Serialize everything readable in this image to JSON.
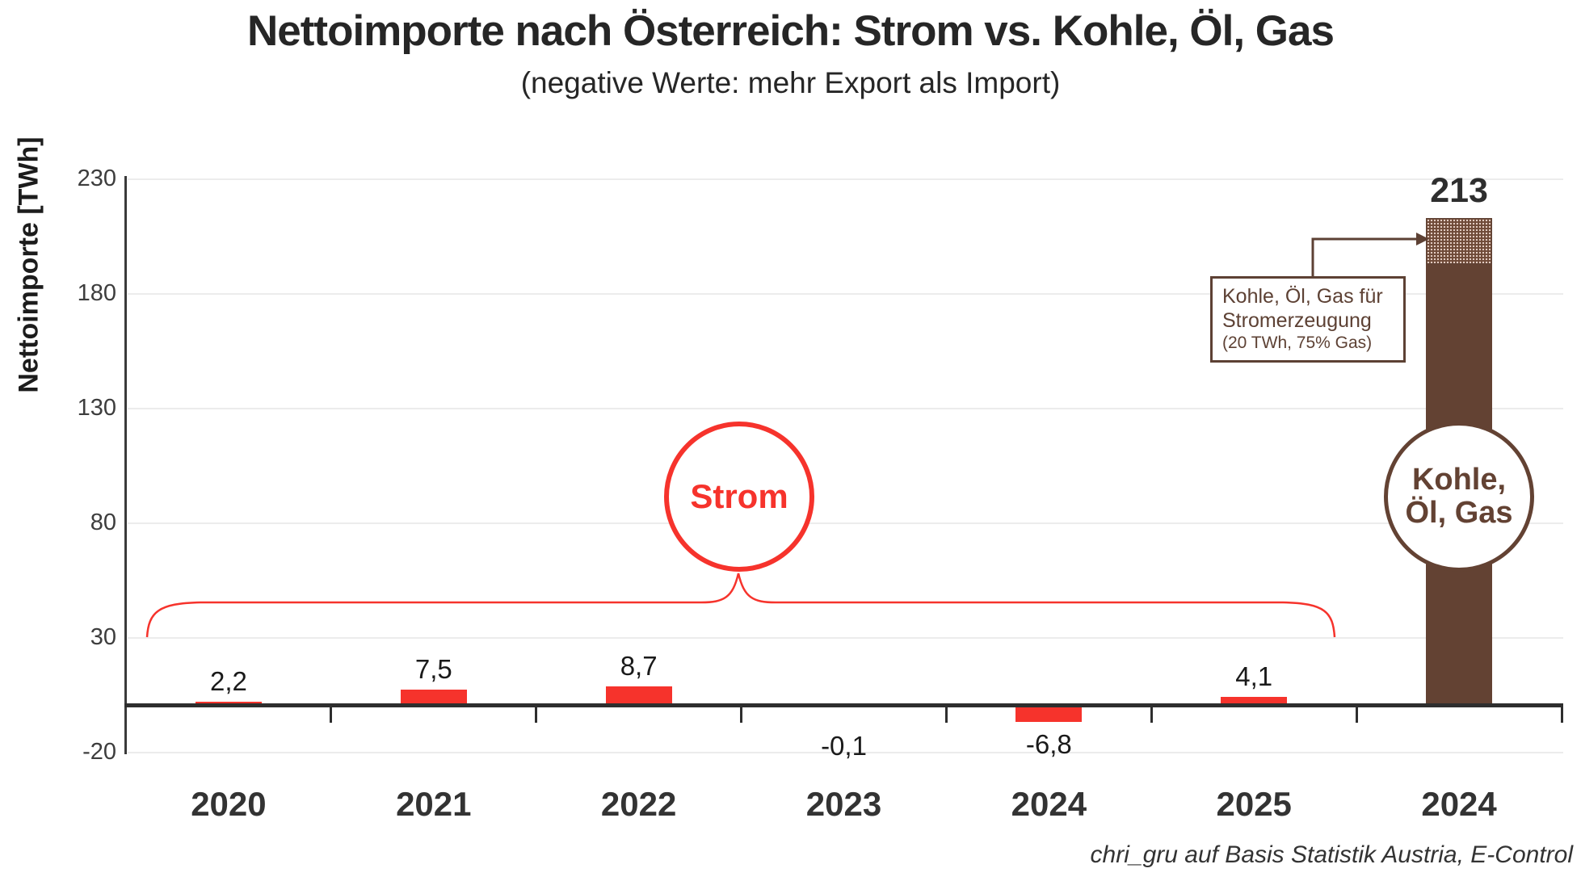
{
  "page": {
    "title": "Nettoimporte nach Österreich: Strom vs. Kohle, Öl, Gas",
    "subtitle": "(negative Werte: mehr Export als Import)",
    "credit": "chri_gru auf Basis Statistik Austria, E-Control"
  },
  "chart_data": {
    "type": "bar",
    "title": "Nettoimporte nach Österreich: Strom vs. Kohle, Öl, Gas",
    "subtitle": "(negative Werte: mehr Export als Import)",
    "ylabel": "Nettoimporte [TWh]",
    "ylim": [
      -20,
      230
    ],
    "yticks": [
      230,
      180,
      130,
      80,
      30,
      -20
    ],
    "grid": "horizontal-light",
    "legend_position": "none",
    "categories": [
      "2020",
      "2021",
      "2022",
      "2023",
      "2024",
      "2025",
      "2024"
    ],
    "series_colors": {
      "Strom": "#f6332c",
      "Kohle, Öl, Gas": "#634233"
    },
    "bars": [
      {
        "category": "2020",
        "series": "Strom",
        "value": 2.2,
        "label": "2,2"
      },
      {
        "category": "2021",
        "series": "Strom",
        "value": 7.5,
        "label": "7,5"
      },
      {
        "category": "2022",
        "series": "Strom",
        "value": 8.7,
        "label": "8,7"
      },
      {
        "category": "2023",
        "series": "Strom",
        "value": -0.1,
        "label": "-0,1"
      },
      {
        "category": "2024",
        "series": "Strom",
        "value": -6.8,
        "label": "-6,8"
      },
      {
        "category": "2025",
        "series": "Strom",
        "value": 4.1,
        "label": "4,1"
      },
      {
        "category": "2024",
        "series": "Kohle, Öl, Gas",
        "value": 213,
        "label": "213",
        "hatch_top_value": 20
      }
    ],
    "annotations": {
      "strom_circle_label": "Strom",
      "fossil_circle_line1": "Kohle,",
      "fossil_circle_line2": "Öl, Gas",
      "callout_line1": "Kohle, Öl, Gas für",
      "callout_line2": "Stromerzeugung",
      "callout_line3": "(20 TWh, 75% Gas)"
    }
  }
}
